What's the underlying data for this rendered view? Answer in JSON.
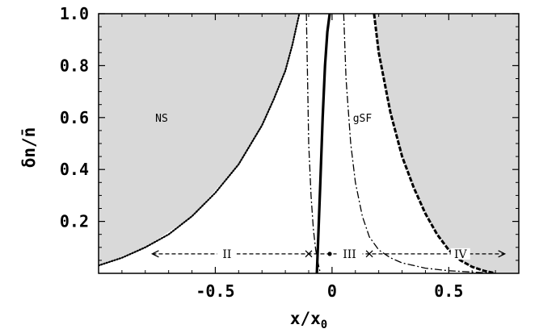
{
  "chart_data": {
    "type": "line",
    "xlabel": "x/x",
    "xlabel_sub": "0",
    "ylabel": "δn/n̄",
    "xlim": [
      -1.0,
      0.8
    ],
    "ylim": [
      0.0,
      1.0
    ],
    "x_ticks": [
      -0.5,
      0.0,
      0.5
    ],
    "x_tick_labels": [
      "-0.5",
      "0",
      "0.5"
    ],
    "y_ticks": [
      0.2,
      0.4,
      0.6,
      0.8,
      1.0
    ],
    "y_tick_labels": [
      "0.2",
      "0.4",
      "0.6",
      "0.8",
      "1.0"
    ],
    "grid": false,
    "colors": {
      "shade": "#d9d9d9",
      "line": "#000000",
      "background": "#ffffff"
    },
    "shaded_regions": [
      {
        "x": [
          -1.0,
          -0.8,
          -0.6,
          -0.4,
          -0.3,
          -0.2,
          -0.14,
          -0.1,
          -0.075,
          -0.055
        ],
        "y_lower": [
          0.03,
          0.1,
          0.22,
          0.42,
          0.57,
          0.78,
          1.0,
          1.0,
          1.0,
          1.0
        ],
        "y_upper": 1.0
      },
      {
        "x": [
          0.18,
          0.2,
          0.25,
          0.3,
          0.35,
          0.4,
          0.45,
          0.5,
          0.55,
          0.6,
          0.65,
          0.7,
          0.8
        ],
        "y_lower": [
          1.0,
          0.85,
          0.62,
          0.45,
          0.33,
          0.23,
          0.15,
          0.09,
          0.05,
          0.025,
          0.01,
          0.0,
          0.0
        ],
        "y_upper": 1.0
      }
    ],
    "series": [
      {
        "style": "dotted",
        "x": [
          -1.0,
          -0.9,
          -0.8,
          -0.7,
          -0.6,
          -0.5,
          -0.4,
          -0.3,
          -0.25,
          -0.2,
          -0.17,
          -0.14
        ],
        "y": [
          0.03,
          0.06,
          0.1,
          0.15,
          0.22,
          0.31,
          0.42,
          0.57,
          0.67,
          0.78,
          0.88,
          1.0
        ]
      },
      {
        "style": "solid-thick",
        "x": [
          -0.065,
          -0.06,
          -0.05,
          -0.04,
          -0.03,
          -0.02,
          -0.01
        ],
        "y": [
          0.0,
          0.12,
          0.35,
          0.6,
          0.8,
          0.93,
          1.0
        ]
      },
      {
        "style": "dash-dot",
        "x": [
          -0.11,
          -0.105,
          -0.1,
          -0.09,
          -0.08,
          -0.07,
          -0.06,
          -0.05
        ],
        "y": [
          1.0,
          0.75,
          0.5,
          0.3,
          0.17,
          0.09,
          0.04,
          0.0
        ]
      },
      {
        "style": "dash-dot",
        "x": [
          0.05,
          0.06,
          0.08,
          0.1,
          0.13,
          0.16,
          0.2,
          0.25,
          0.3,
          0.35,
          0.4,
          0.5,
          0.6,
          0.7
        ],
        "y": [
          1.0,
          0.75,
          0.5,
          0.35,
          0.22,
          0.14,
          0.09,
          0.06,
          0.04,
          0.03,
          0.02,
          0.01,
          0.005,
          0.0
        ]
      },
      {
        "style": "dashed-thick",
        "x": [
          0.18,
          0.2,
          0.25,
          0.3,
          0.35,
          0.4,
          0.45,
          0.5,
          0.55,
          0.6,
          0.65,
          0.7
        ],
        "y": [
          1.0,
          0.85,
          0.62,
          0.45,
          0.33,
          0.23,
          0.15,
          0.09,
          0.05,
          0.025,
          0.01,
          0.0
        ]
      }
    ],
    "annotations": [
      {
        "text": "NS",
        "x": -0.73,
        "y": 0.6
      },
      {
        "text": "gSF",
        "x": 0.13,
        "y": 0.6
      }
    ],
    "arrow_line": {
      "y": 0.075,
      "x_start": -0.77,
      "x_end": 0.74,
      "cross_marks": [
        -0.1,
        0.16
      ],
      "dot_mark": -0.01,
      "labels": [
        {
          "text": "II",
          "x": -0.45
        },
        {
          "text": "III",
          "x": 0.075
        },
        {
          "text": "IV",
          "x": 0.55
        }
      ]
    }
  }
}
